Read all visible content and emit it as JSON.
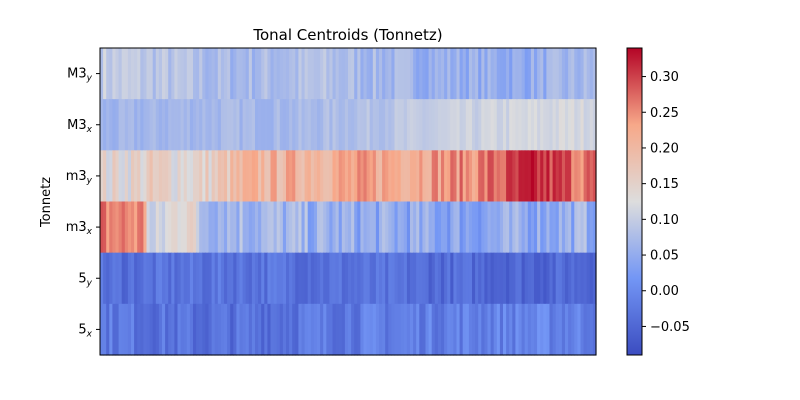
{
  "chart_data": {
    "type": "heatmap",
    "title": "Tonal Centroids (Tonnetz)",
    "ylabel": "Tonnetz",
    "xlabel": "",
    "rows": [
      {
        "base": "M3",
        "sub": "y",
        "profile": [
          [
            0,
            0.1
          ],
          [
            0.1,
            0.09
          ],
          [
            0.25,
            0.07
          ],
          [
            0.45,
            0.08
          ],
          [
            0.65,
            0.06
          ],
          [
            0.85,
            0.05
          ],
          [
            1,
            0.07
          ]
        ],
        "amp": 0.025
      },
      {
        "base": "M3",
        "sub": "x",
        "profile": [
          [
            0,
            0.06
          ],
          [
            0.2,
            0.07
          ],
          [
            0.4,
            0.07
          ],
          [
            0.6,
            0.09
          ],
          [
            0.8,
            0.11
          ],
          [
            1,
            0.12
          ]
        ],
        "amp": 0.015
      },
      {
        "base": "m3",
        "sub": "y",
        "profile": [
          [
            0,
            0.13
          ],
          [
            0.1,
            0.15
          ],
          [
            0.2,
            0.14
          ],
          [
            0.3,
            0.2
          ],
          [
            0.45,
            0.22
          ],
          [
            0.6,
            0.23
          ],
          [
            0.75,
            0.25
          ],
          [
            0.88,
            0.31
          ],
          [
            1,
            0.26
          ]
        ],
        "amp": 0.04
      },
      {
        "base": "m3",
        "sub": "x",
        "profile": [
          [
            0,
            0.26
          ],
          [
            0.09,
            0.25
          ],
          [
            0.1,
            0.08
          ],
          [
            0.18,
            0.17
          ],
          [
            0.2,
            0.08
          ],
          [
            0.5,
            0.05
          ],
          [
            0.75,
            0.04
          ],
          [
            1,
            0.06
          ]
        ],
        "amp": 0.04
      },
      {
        "base": "5",
        "sub": "y",
        "profile": [
          [
            0,
            -0.04
          ],
          [
            0.3,
            -0.03
          ],
          [
            0.6,
            -0.04
          ],
          [
            0.9,
            -0.05
          ],
          [
            1,
            -0.04
          ]
        ],
        "amp": 0.025
      },
      {
        "base": "5",
        "sub": "x",
        "profile": [
          [
            0,
            -0.02
          ],
          [
            0.2,
            -0.04
          ],
          [
            0.5,
            -0.02
          ],
          [
            0.8,
            -0.01
          ],
          [
            1,
            -0.01
          ]
        ],
        "amp": 0.03
      }
    ],
    "n_frames": 160,
    "colormap": "coolwarm",
    "colorbar": {
      "min": -0.09,
      "max": 0.34,
      "ticks": [
        -0.05,
        0.0,
        0.05,
        0.1,
        0.15,
        0.2,
        0.25,
        0.3
      ],
      "tick_labels": [
        "−0.05",
        "0.00",
        "0.05",
        "0.10",
        "0.15",
        "0.20",
        "0.25",
        "0.30"
      ]
    },
    "grid": false,
    "x_ticks": false
  }
}
